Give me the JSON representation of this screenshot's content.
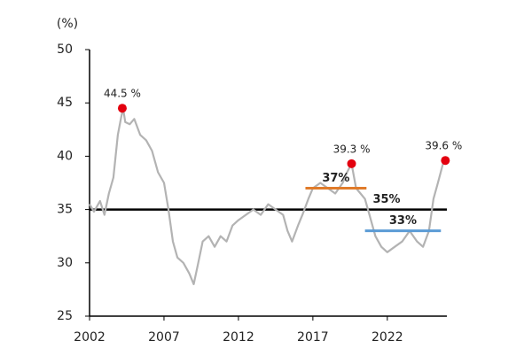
{
  "chart_data": {
    "type": "line",
    "y_axis_label": "(%)",
    "xlim": [
      2002,
      2026
    ],
    "xticks": [
      2002,
      2007,
      2012,
      2017,
      2022
    ],
    "ylim": [
      25,
      50
    ],
    "yticks": [
      25,
      30,
      35,
      40,
      45,
      50
    ],
    "grid": false,
    "series": [
      {
        "color": "#b3b3b3",
        "x": [
          2002.0,
          2002.3,
          2002.7,
          2003.0,
          2003.3,
          2003.6,
          2003.9,
          2004.1,
          2004.25,
          2004.4,
          2004.7,
          2005.0,
          2005.4,
          2005.8,
          2006.2,
          2006.6,
          2007.0,
          2007.3,
          2007.6,
          2007.9,
          2008.3,
          2008.7,
          2009.0,
          2009.3,
          2009.6,
          2010.0,
          2010.4,
          2010.8,
          2011.2,
          2011.6,
          2012.0,
          2012.5,
          2013.0,
          2013.5,
          2014.0,
          2014.5,
          2015.0,
          2015.3,
          2015.6,
          2016.0,
          2016.3,
          2016.7,
          2017.0,
          2017.5,
          2018.0,
          2018.5,
          2019.0,
          2019.3,
          2019.6,
          2019.9,
          2020.2,
          2020.5,
          2020.8,
          2021.2,
          2021.6,
          2022.0,
          2022.5,
          2023.0,
          2023.5,
          2024.0,
          2024.4,
          2024.8,
          2025.1,
          2025.4,
          2025.8
        ],
        "values": [
          35.5,
          34.8,
          35.8,
          34.5,
          36.5,
          38,
          42,
          43.5,
          44.5,
          43.2,
          43,
          43.5,
          42,
          41.5,
          40.5,
          38.5,
          37.5,
          35,
          32,
          30.5,
          30,
          29,
          28,
          30,
          32,
          32.5,
          31.5,
          32.5,
          32,
          33.5,
          34,
          34.5,
          35,
          34.5,
          35.5,
          35,
          34.5,
          33,
          32,
          33.5,
          34.5,
          36,
          37,
          37.5,
          37,
          36.5,
          37.5,
          38.5,
          39.3,
          37,
          36.5,
          36,
          34.5,
          32.5,
          31.5,
          31,
          31.5,
          32,
          33,
          32,
          31.5,
          33,
          36,
          37.5,
          39.6
        ]
      }
    ],
    "highlights": {
      "color": "#e3000f",
      "x": [
        2004.2,
        2019.6,
        2025.9
      ],
      "values": [
        44.5,
        39.3,
        39.6
      ],
      "value_labels": [
        "44.5 %",
        "39.3 %",
        "39.6 %"
      ]
    },
    "reference_lines": [
      {
        "value": 35,
        "label": "35%",
        "color": "#000000",
        "xrange": [
          2002,
          2026
        ]
      },
      {
        "value": 37,
        "label": "37%",
        "color": "#e07b2a",
        "xrange": [
          2016.5,
          2020.6
        ]
      },
      {
        "value": 33,
        "label": "33%",
        "color": "#5b9bd5",
        "xrange": [
          2020.5,
          2025.6
        ]
      }
    ]
  }
}
